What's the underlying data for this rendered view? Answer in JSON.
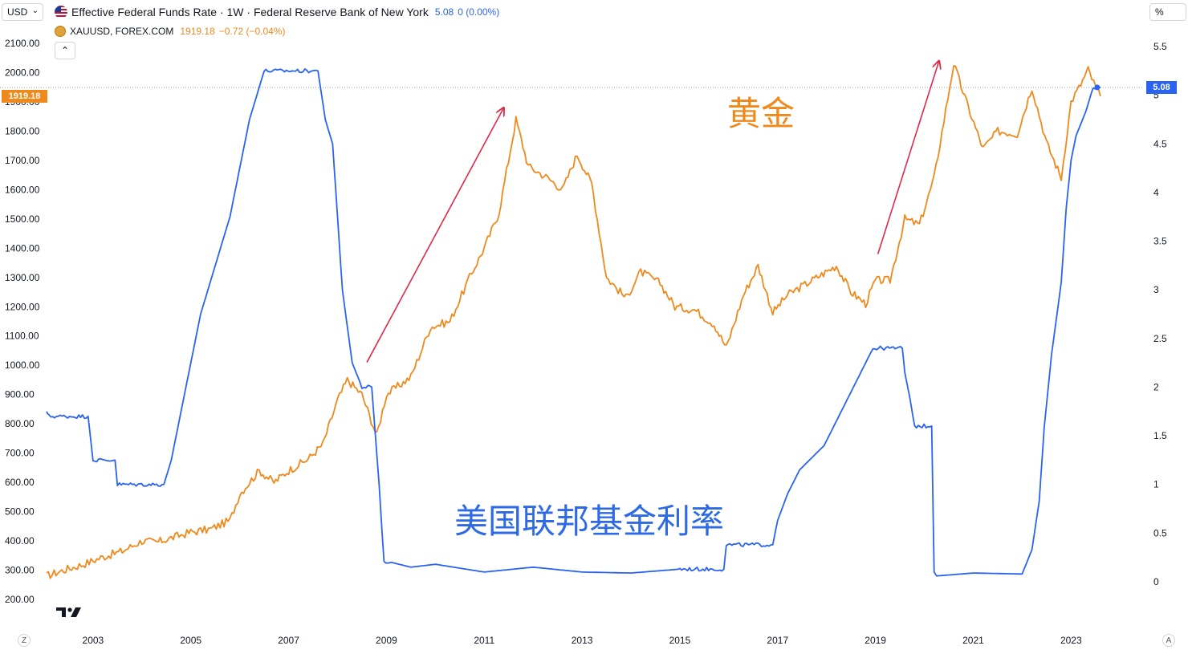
{
  "toolbar": {
    "currency": "USD",
    "scale_unit": "%"
  },
  "legend": {
    "series1": {
      "title": "Effective Federal Funds Rate · 1W · Federal Reserve Bank of New York",
      "value": "5.08",
      "change": "0 (0.00%)",
      "color": "#2a62f2"
    },
    "series2": {
      "title": "XAUUSD, FOREX.COM",
      "value": "1919.18",
      "change": "−0.72 (−0.04%)",
      "color": "#f0891c"
    }
  },
  "price_tags": {
    "gold_last": "1919.18",
    "rate_last": "5.08"
  },
  "annotations": {
    "gold": "黄金",
    "rate": "美国联邦基金利率"
  },
  "footer": {
    "left": "Z",
    "right": "A"
  },
  "chart_data": {
    "type": "line",
    "left_axis": {
      "ticks": [
        "200.00",
        "300.00",
        "400.00",
        "500.00",
        "600.00",
        "700.00",
        "800.00",
        "900.00",
        "1000.00",
        "1100.00",
        "1200.00",
        "1300.00",
        "1400.00",
        "1500.00",
        "1600.00",
        "1700.00",
        "1800.00",
        "1900.00",
        "2000.00",
        "2100.00"
      ],
      "range": [
        180,
        2130
      ]
    },
    "right_axis": {
      "ticks": [
        "0",
        "0.5",
        "1",
        "1.5",
        "2",
        "2.5",
        "3",
        "3.5",
        "4",
        "4.5",
        "5",
        "5.5"
      ],
      "range": [
        -0.2,
        5.75
      ]
    },
    "x_axis": {
      "ticks": [
        "2003",
        "2005",
        "2007",
        "2009",
        "2011",
        "2013",
        "2015",
        "2017",
        "2019",
        "2021",
        "2023"
      ],
      "range": [
        2002.05,
        2023.75
      ]
    },
    "series": [
      {
        "name": "XAUUSD, FOREX.COM",
        "axis": "left",
        "color": "#f0891c",
        "points": [
          [
            2002.05,
            280
          ],
          [
            2002.4,
            300
          ],
          [
            2002.8,
            320
          ],
          [
            2003.2,
            345
          ],
          [
            2003.6,
            365
          ],
          [
            2004.0,
            400
          ],
          [
            2004.3,
            395
          ],
          [
            2004.6,
            410
          ],
          [
            2005.0,
            430
          ],
          [
            2005.4,
            440
          ],
          [
            2005.8,
            470
          ],
          [
            2006.0,
            560
          ],
          [
            2006.4,
            640
          ],
          [
            2006.7,
            600
          ],
          [
            2007.0,
            640
          ],
          [
            2007.4,
            680
          ],
          [
            2007.7,
            730
          ],
          [
            2008.0,
            880
          ],
          [
            2008.2,
            950
          ],
          [
            2008.5,
            900
          ],
          [
            2008.8,
            760
          ],
          [
            2009.0,
            900
          ],
          [
            2009.5,
            960
          ],
          [
            2009.9,
            1130
          ],
          [
            2010.3,
            1150
          ],
          [
            2010.7,
            1300
          ],
          [
            2011.0,
            1400
          ],
          [
            2011.3,
            1520
          ],
          [
            2011.65,
            1840
          ],
          [
            2011.9,
            1680
          ],
          [
            2012.3,
            1640
          ],
          [
            2012.6,
            1600
          ],
          [
            2012.9,
            1720
          ],
          [
            2013.2,
            1620
          ],
          [
            2013.5,
            1300
          ],
          [
            2013.9,
            1230
          ],
          [
            2014.2,
            1320
          ],
          [
            2014.6,
            1280
          ],
          [
            2014.9,
            1200
          ],
          [
            2015.3,
            1190
          ],
          [
            2015.7,
            1140
          ],
          [
            2015.95,
            1060
          ],
          [
            2016.3,
            1240
          ],
          [
            2016.6,
            1340
          ],
          [
            2016.9,
            1180
          ],
          [
            2017.2,
            1240
          ],
          [
            2017.6,
            1280
          ],
          [
            2017.9,
            1310
          ],
          [
            2018.2,
            1340
          ],
          [
            2018.5,
            1250
          ],
          [
            2018.8,
            1210
          ],
          [
            2019.0,
            1290
          ],
          [
            2019.3,
            1290
          ],
          [
            2019.6,
            1500
          ],
          [
            2019.9,
            1480
          ],
          [
            2020.2,
            1640
          ],
          [
            2020.6,
            2030
          ],
          [
            2020.9,
            1880
          ],
          [
            2021.2,
            1740
          ],
          [
            2021.5,
            1800
          ],
          [
            2021.9,
            1790
          ],
          [
            2022.2,
            1950
          ],
          [
            2022.5,
            1760
          ],
          [
            2022.8,
            1640
          ],
          [
            2023.0,
            1900
          ],
          [
            2023.2,
            1960
          ],
          [
            2023.35,
            2010
          ],
          [
            2023.5,
            1950
          ],
          [
            2023.6,
            1919
          ]
        ]
      },
      {
        "name": "Effective Federal Funds Rate · 1W · Federal Reserve Bank of New York",
        "axis": "right",
        "color": "#2a62f2",
        "points": [
          [
            2002.05,
            1.75
          ],
          [
            2002.1,
            1.7
          ],
          [
            2002.9,
            1.7
          ],
          [
            2003.0,
            1.25
          ],
          [
            2003.45,
            1.25
          ],
          [
            2003.5,
            1.0
          ],
          [
            2004.45,
            1.0
          ],
          [
            2004.6,
            1.25
          ],
          [
            2004.8,
            1.75
          ],
          [
            2005.0,
            2.25
          ],
          [
            2005.2,
            2.75
          ],
          [
            2005.5,
            3.25
          ],
          [
            2005.8,
            3.75
          ],
          [
            2006.0,
            4.25
          ],
          [
            2006.2,
            4.75
          ],
          [
            2006.5,
            5.25
          ],
          [
            2007.6,
            5.25
          ],
          [
            2007.75,
            4.75
          ],
          [
            2007.9,
            4.5
          ],
          [
            2008.0,
            3.75
          ],
          [
            2008.1,
            3.0
          ],
          [
            2008.3,
            2.25
          ],
          [
            2008.5,
            2.0
          ],
          [
            2008.7,
            2.0
          ],
          [
            2008.85,
            1.0
          ],
          [
            2008.95,
            0.2
          ],
          [
            2009.1,
            0.2
          ],
          [
            2009.5,
            0.15
          ],
          [
            2010.0,
            0.18
          ],
          [
            2011.0,
            0.1
          ],
          [
            2012.0,
            0.15
          ],
          [
            2013.0,
            0.1
          ],
          [
            2014.0,
            0.09
          ],
          [
            2015.0,
            0.13
          ],
          [
            2015.9,
            0.13
          ],
          [
            2015.95,
            0.38
          ],
          [
            2016.9,
            0.38
          ],
          [
            2017.0,
            0.63
          ],
          [
            2017.2,
            0.9
          ],
          [
            2017.45,
            1.15
          ],
          [
            2017.95,
            1.4
          ],
          [
            2018.2,
            1.65
          ],
          [
            2018.45,
            1.9
          ],
          [
            2018.7,
            2.15
          ],
          [
            2018.95,
            2.4
          ],
          [
            2019.55,
            2.4
          ],
          [
            2019.6,
            2.15
          ],
          [
            2019.7,
            1.9
          ],
          [
            2019.8,
            1.6
          ],
          [
            2020.15,
            1.6
          ],
          [
            2020.2,
            0.1
          ],
          [
            2020.25,
            0.06
          ],
          [
            2021.0,
            0.09
          ],
          [
            2022.0,
            0.08
          ],
          [
            2022.2,
            0.33
          ],
          [
            2022.35,
            0.83
          ],
          [
            2022.45,
            1.58
          ],
          [
            2022.6,
            2.33
          ],
          [
            2022.8,
            3.08
          ],
          [
            2022.9,
            3.83
          ],
          [
            2023.0,
            4.33
          ],
          [
            2023.1,
            4.58
          ],
          [
            2023.3,
            4.83
          ],
          [
            2023.45,
            5.08
          ],
          [
            2023.6,
            5.08
          ]
        ]
      }
    ],
    "arrows": [
      {
        "from": [
          2008.6,
          1010
        ],
        "to": [
          2011.4,
          1880
        ],
        "axis": "left",
        "color": "#e0294a"
      },
      {
        "from": [
          2019.05,
          1380
        ],
        "to": [
          2020.3,
          2040
        ],
        "axis": "left",
        "color": "#e0294a"
      }
    ]
  }
}
